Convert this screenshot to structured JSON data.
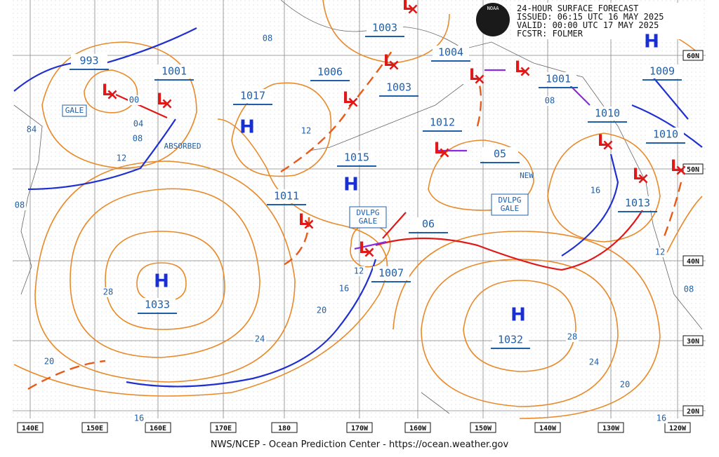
{
  "header": {
    "lines": [
      "24-HOUR SURFACE FORECAST",
      "ISSUED: 06:15 UTC 16 MAY 2025",
      "VALID:  00:00 UTC 17 MAY 2025",
      "FCSTR:  FOLMER"
    ],
    "logo": "NOAA"
  },
  "longitude_labels": [
    "140E",
    "150E",
    "160E",
    "170E",
    "180",
    "170W",
    "160W",
    "150W",
    "140W",
    "130W",
    "120W"
  ],
  "latitude_labels": [
    "60N",
    "50N",
    "40N",
    "30N",
    "20N"
  ],
  "pressure_labels": [
    "993",
    "1001",
    "1017",
    "1006",
    "1003",
    "1003",
    "1004",
    "1001",
    "1009",
    "1010",
    "1010",
    "1012",
    "1015",
    "1011",
    "1013",
    "1007",
    "1033",
    "1032",
    "05",
    "06"
  ],
  "isobar_labels": [
    "08",
    "00",
    "04",
    "08",
    "12",
    "84",
    "12",
    "16",
    "20",
    "24",
    "28",
    "20",
    "16",
    "12",
    "16",
    "28",
    "24",
    "20",
    "16",
    "12",
    "08",
    "08",
    "08"
  ],
  "symbols": {
    "high": "H",
    "low": "L"
  },
  "annotations": {
    "gale": "GALE",
    "absorbed": "ABSORBED",
    "developing": [
      [
        "DVLPG",
        "GALE"
      ],
      [
        "DVLPG",
        "GALE"
      ]
    ],
    "new": "NEW"
  },
  "footer": "NWS/NCEP - Ocean Prediction Center - https://ocean.weather.gov"
}
